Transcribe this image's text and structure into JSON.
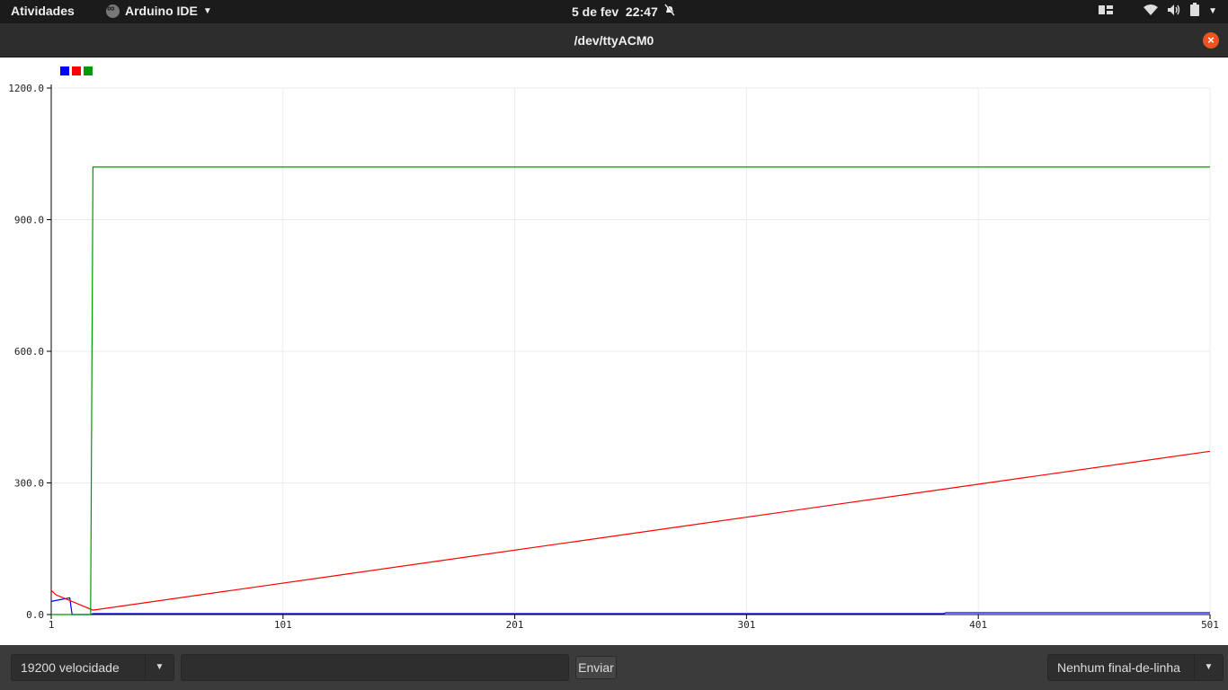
{
  "topbar": {
    "activities": "Atividades",
    "app_name": "Arduino IDE",
    "clock": "5 de fev  22:47",
    "tray_icons": [
      "window-switcher-icon",
      "wifi-icon",
      "volume-icon",
      "battery-icon",
      "system-menu-icon"
    ]
  },
  "window": {
    "title": "/dev/ttyACM0",
    "close_label": "×"
  },
  "bottom": {
    "baud": "19200 velocidade",
    "send_value": "",
    "send_button": "Enviar",
    "line_ending": "Nenhum final-de-linha"
  },
  "chart_data": {
    "type": "line",
    "title": "",
    "xlabel": "",
    "ylabel": "",
    "xlim": [
      1,
      501
    ],
    "ylim": [
      0,
      1200
    ],
    "x_ticks": [
      "1",
      "101",
      "201",
      "301",
      "401",
      "501"
    ],
    "y_ticks": [
      "0.0",
      "300.0",
      "600.0",
      "900.0",
      "1200.0"
    ],
    "grid": true,
    "legend_placement": "top-left",
    "series": [
      {
        "color": "#0000ff",
        "points": [
          [
            1,
            30
          ],
          [
            9,
            38
          ],
          [
            10,
            0
          ],
          [
            18,
            0
          ],
          [
            19,
            2
          ],
          [
            200,
            2
          ],
          [
            386,
            2
          ],
          [
            387,
            4
          ],
          [
            501,
            4
          ]
        ]
      },
      {
        "color": "#ff0000",
        "points": [
          [
            1,
            55
          ],
          [
            2,
            50
          ],
          [
            3,
            45
          ],
          [
            19,
            10
          ],
          [
            501,
            372
          ]
        ]
      },
      {
        "color": "#009900",
        "points": [
          [
            1,
            0
          ],
          [
            18,
            0
          ],
          [
            19,
            1020
          ],
          [
            501,
            1020
          ]
        ]
      }
    ]
  }
}
